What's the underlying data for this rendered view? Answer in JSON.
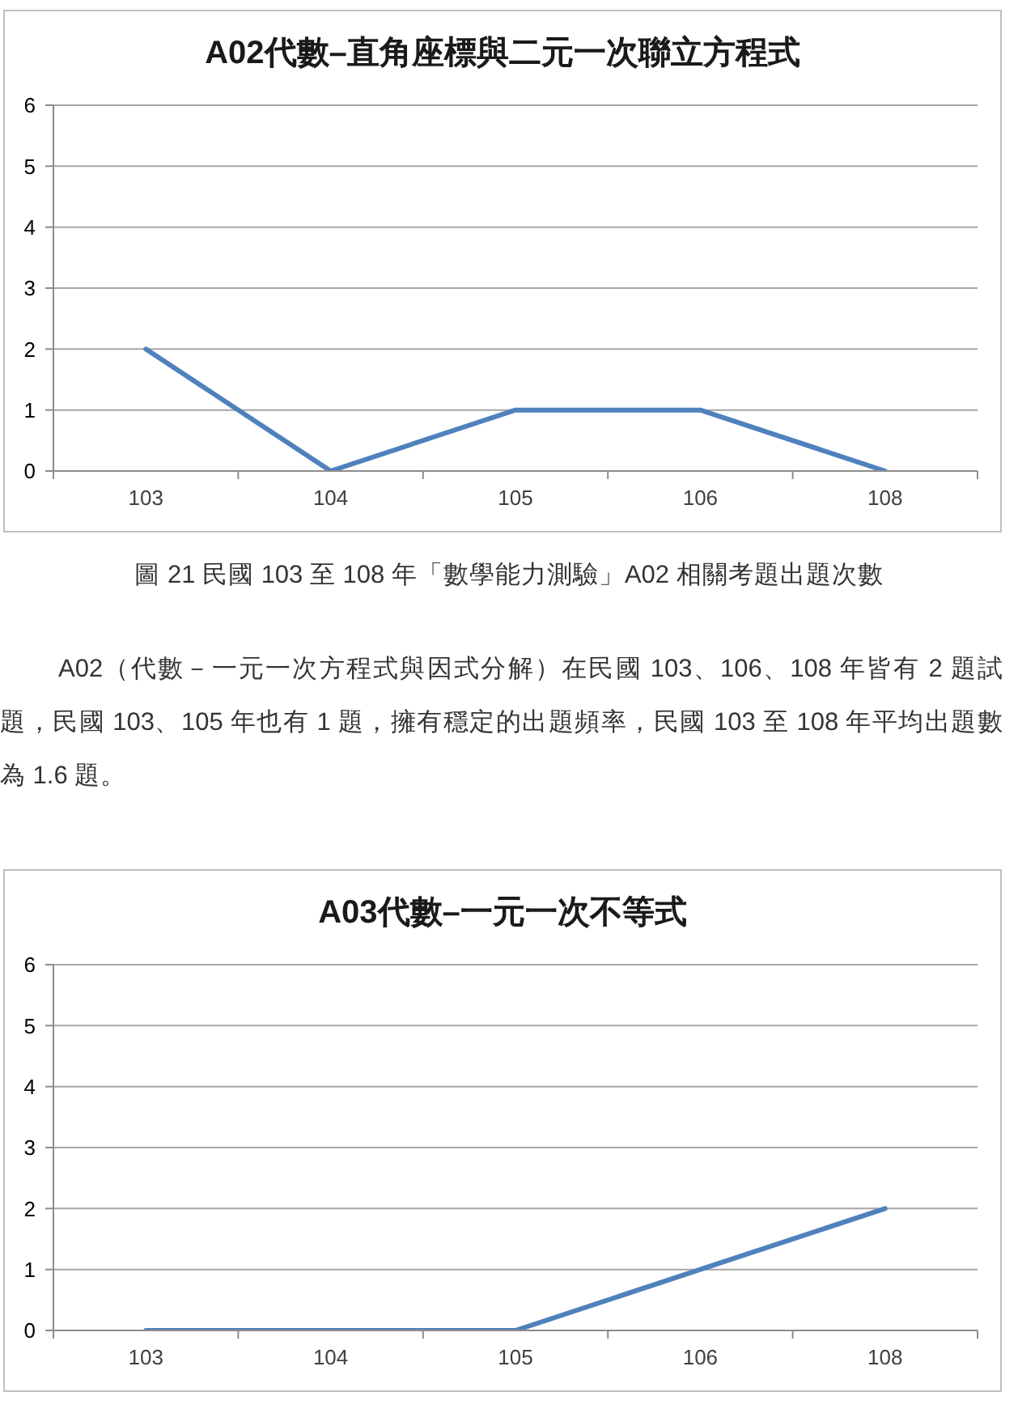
{
  "chart_data": [
    {
      "type": "line",
      "title": "A02代數–直角座標與二元一次聯立方程式",
      "categories": [
        "103",
        "104",
        "105",
        "106",
        "108"
      ],
      "series": [
        {
          "color": "#4f81bd",
          "values": [
            2,
            0,
            1,
            1,
            0
          ]
        }
      ],
      "ylim": [
        0,
        6
      ],
      "yticks": [
        0,
        1,
        2,
        3,
        4,
        5,
        6
      ],
      "grid": "y",
      "marker": "none",
      "annotations": [
        "圖 21 民國 103 至 108 年「數學能力測驗」A02 相關考題出題次數",
        "A02（代數－一元一次方程式與因式分解）在民國 103、106、108 年皆有 2 題試題，民國 103、105 年也有 1 題，擁有穩定的出題頻率，民國 103 至 108 年平均出題數為 1.6 題。"
      ]
    },
    {
      "type": "line",
      "title": "A03代數–一元一次不等式",
      "categories": [
        "103",
        "104",
        "105",
        "106",
        "108"
      ],
      "series": [
        {
          "color": "#4f81bd",
          "values": [
            0,
            0,
            0,
            1,
            2
          ]
        }
      ],
      "ylim": [
        0,
        6
      ],
      "yticks": [
        0,
        1,
        2,
        3,
        4,
        5,
        6
      ],
      "grid": "y",
      "marker": "none"
    }
  ]
}
